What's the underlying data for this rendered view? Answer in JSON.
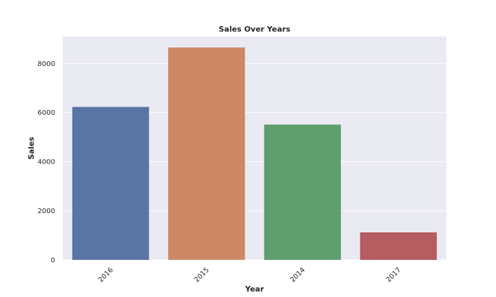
{
  "chart_data": {
    "type": "bar",
    "title": "Sales Over Years",
    "xlabel": "Year",
    "ylabel": "Sales",
    "categories": [
      "2016",
      "2015",
      "2014",
      "2017"
    ],
    "values": [
      6230,
      8650,
      5510,
      1120
    ],
    "ylim": [
      0,
      9100
    ],
    "yticks": [
      0,
      2000,
      4000,
      6000,
      8000
    ],
    "colors": [
      "#5975a4",
      "#cc8963",
      "#5f9e6e",
      "#b55d60"
    ],
    "background": "#eaeaf2",
    "grid": true,
    "x_tick_rotation": "45 degrees"
  }
}
